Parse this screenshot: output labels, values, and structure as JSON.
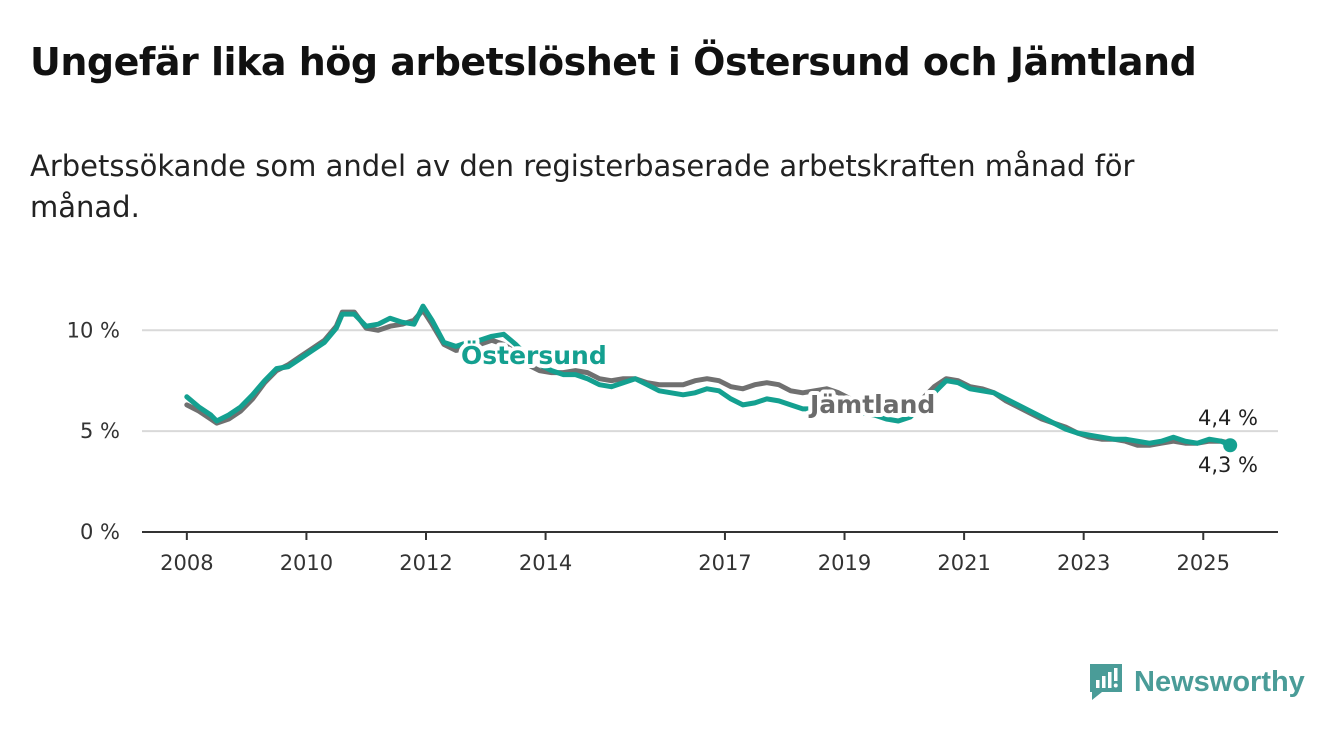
{
  "title": "Ungefär lika hög arbetslöshet i Östersund och Jämtland",
  "subtitle": "Arbetssökande som andel av den registerbaserade arbetskraften månad för månad.",
  "brand": {
    "name": "Newsworthy",
    "icon": "newsworthy-logo-icon",
    "color": "#4a9c98"
  },
  "chart_data": {
    "type": "line",
    "title": "Ungefär lika hög arbetslöshet i Östersund och Jämtland",
    "subtitle": "Arbetssökande som andel av den registerbaserade arbetskraften månad för månad.",
    "xlabel": "",
    "ylabel": "",
    "ylim": [
      0,
      11.5
    ],
    "xlim": [
      2007.25,
      2026.25
    ],
    "grid": true,
    "legend": "inline labels on lines",
    "y_ticks": [
      {
        "value": 0,
        "label": "0 %"
      },
      {
        "value": 5,
        "label": "5 %"
      },
      {
        "value": 10,
        "label": "10 %"
      }
    ],
    "x_ticks": [
      {
        "value": 2008,
        "label": "2008"
      },
      {
        "value": 2010,
        "label": "2010"
      },
      {
        "value": 2012,
        "label": "2012"
      },
      {
        "value": 2014,
        "label": "2014"
      },
      {
        "value": 2017,
        "label": "2017"
      },
      {
        "value": 2019,
        "label": "2019"
      },
      {
        "value": 2021,
        "label": "2021"
      },
      {
        "value": 2023,
        "label": "2023"
      },
      {
        "value": 2025,
        "label": "2025"
      }
    ],
    "series": [
      {
        "name": "Jämtland",
        "color": "#707070",
        "label_value_end": "4,4 %",
        "segments": [
          [
            [
              2008.0,
              6.3
            ],
            [
              2008.2,
              6.0
            ],
            [
              2008.4,
              5.6
            ],
            [
              2008.5,
              5.4
            ],
            [
              2008.7,
              5.6
            ],
            [
              2008.9,
              6.0
            ],
            [
              2009.1,
              6.6
            ],
            [
              2009.3,
              7.4
            ],
            [
              2009.5,
              8.0
            ],
            [
              2009.7,
              8.3
            ],
            [
              2009.9,
              8.7
            ],
            [
              2010.1,
              9.1
            ],
            [
              2010.3,
              9.5
            ],
            [
              2010.5,
              10.2
            ],
            [
              2010.6,
              10.9
            ],
            [
              2010.8,
              10.9
            ],
            [
              2011.0,
              10.1
            ],
            [
              2011.2,
              10.0
            ],
            [
              2011.4,
              10.2
            ],
            [
              2011.6,
              10.3
            ],
            [
              2011.8,
              10.5
            ],
            [
              2011.95,
              11.0
            ],
            [
              2012.1,
              10.3
            ],
            [
              2012.3,
              9.3
            ],
            [
              2012.5,
              9.0
            ],
            [
              2012.7,
              9.1
            ],
            [
              2012.9,
              9.3
            ],
            [
              2013.1,
              9.5
            ],
            [
              2013.3,
              9.3
            ],
            [
              2013.5,
              8.9
            ],
            [
              2013.7,
              8.3
            ],
            [
              2013.9,
              8.0
            ],
            [
              2014.1,
              7.9
            ],
            [
              2014.3,
              7.9
            ],
            [
              2014.5,
              8.0
            ],
            [
              2014.7,
              7.9
            ],
            [
              2014.9,
              7.6
            ],
            [
              2015.1,
              7.5
            ],
            [
              2015.3,
              7.6
            ],
            [
              2015.5,
              7.6
            ],
            [
              2015.7,
              7.4
            ],
            [
              2015.9,
              7.3
            ],
            [
              2016.1,
              7.3
            ],
            [
              2016.3,
              7.3
            ],
            [
              2016.5,
              7.5
            ],
            [
              2016.7,
              7.6
            ],
            [
              2016.9,
              7.5
            ],
            [
              2017.1,
              7.2
            ],
            [
              2017.3,
              7.1
            ],
            [
              2017.5,
              7.3
            ],
            [
              2017.7,
              7.4
            ],
            [
              2017.9,
              7.3
            ],
            [
              2018.1,
              7.0
            ],
            [
              2018.3,
              6.9
            ],
            [
              2018.5,
              7.0
            ],
            [
              2018.7,
              7.1
            ],
            [
              2018.9,
              6.9
            ],
            [
              2019.1,
              6.6
            ],
            [
              2019.3,
              6.3
            ],
            [
              2019.5,
              6.2
            ],
            [
              2019.7,
              6.1
            ],
            [
              2019.9,
              6.0
            ],
            [
              2020.1,
              6.1
            ],
            [
              2020.3,
              6.6
            ],
            [
              2020.5,
              7.2
            ],
            [
              2020.7,
              7.6
            ],
            [
              2020.9,
              7.5
            ],
            [
              2021.1,
              7.2
            ],
            [
              2021.3,
              7.1
            ],
            [
              2021.5,
              6.9
            ],
            [
              2021.7,
              6.5
            ],
            [
              2021.9,
              6.2
            ],
            [
              2022.1,
              5.9
            ],
            [
              2022.3,
              5.6
            ],
            [
              2022.5,
              5.4
            ],
            [
              2022.7,
              5.2
            ],
            [
              2022.9,
              4.9
            ],
            [
              2023.1,
              4.7
            ],
            [
              2023.3,
              4.6
            ],
            [
              2023.5,
              4.6
            ],
            [
              2023.7,
              4.5
            ],
            [
              2023.9,
              4.3
            ],
            [
              2024.1,
              4.3
            ],
            [
              2024.3,
              4.4
            ],
            [
              2024.5,
              4.5
            ],
            [
              2024.7,
              4.4
            ],
            [
              2024.9,
              4.4
            ],
            [
              2025.1,
              4.5
            ],
            [
              2025.3,
              4.5
            ],
            [
              2025.45,
              4.4
            ]
          ]
        ]
      },
      {
        "name": "Östersund",
        "color": "#14a090",
        "label_value_end": "4,3 %",
        "segments": [
          [
            [
              2008.0,
              6.7
            ],
            [
              2008.2,
              6.2
            ],
            [
              2008.4,
              5.8
            ],
            [
              2008.5,
              5.5
            ],
            [
              2008.7,
              5.8
            ],
            [
              2008.9,
              6.2
            ],
            [
              2009.1,
              6.8
            ],
            [
              2009.3,
              7.5
            ],
            [
              2009.5,
              8.1
            ],
            [
              2009.7,
              8.2
            ],
            [
              2009.9,
              8.6
            ],
            [
              2010.1,
              9.0
            ],
            [
              2010.3,
              9.4
            ],
            [
              2010.5,
              10.1
            ],
            [
              2010.6,
              10.8
            ],
            [
              2010.8,
              10.8
            ],
            [
              2011.0,
              10.2
            ],
            [
              2011.2,
              10.3
            ],
            [
              2011.4,
              10.6
            ],
            [
              2011.6,
              10.4
            ],
            [
              2011.8,
              10.3
            ],
            [
              2011.95,
              11.2
            ],
            [
              2012.1,
              10.5
            ],
            [
              2012.3,
              9.4
            ],
            [
              2012.5,
              9.2
            ],
            [
              2012.7,
              9.4
            ],
            [
              2012.9,
              9.5
            ],
            [
              2013.1,
              9.7
            ],
            [
              2013.3,
              9.8
            ],
            [
              2013.5,
              9.3
            ],
            [
              2013.7,
              8.7
            ],
            [
              2013.9,
              8.3
            ],
            [
              2014.1,
              8.0
            ],
            [
              2014.3,
              7.8
            ],
            [
              2014.5,
              7.8
            ],
            [
              2014.7,
              7.6
            ],
            [
              2014.9,
              7.3
            ],
            [
              2015.1,
              7.2
            ],
            [
              2015.3,
              7.4
            ],
            [
              2015.5,
              7.6
            ],
            [
              2015.7,
              7.3
            ],
            [
              2015.9,
              7.0
            ],
            [
              2016.1,
              6.9
            ],
            [
              2016.3,
              6.8
            ],
            [
              2016.5,
              6.9
            ],
            [
              2016.7,
              7.1
            ],
            [
              2016.9,
              7.0
            ],
            [
              2017.1,
              6.6
            ],
            [
              2017.3,
              6.3
            ],
            [
              2017.5,
              6.4
            ],
            [
              2017.7,
              6.6
            ],
            [
              2017.9,
              6.5
            ],
            [
              2018.1,
              6.3
            ],
            [
              2018.3,
              6.1
            ],
            [
              2018.5,
              6.1
            ],
            [
              2018.7,
              6.1
            ],
            [
              2018.9,
              6.2
            ],
            [
              2019.1,
              6.0
            ],
            [
              2019.3,
              5.9
            ],
            [
              2019.5,
              5.8
            ],
            [
              2019.7,
              5.6
            ],
            [
              2019.9,
              5.5
            ],
            [
              2020.1,
              5.7
            ],
            [
              2020.3,
              6.3
            ],
            [
              2020.5,
              6.9
            ],
            [
              2020.7,
              7.5
            ],
            [
              2020.9,
              7.4
            ],
            [
              2021.1,
              7.1
            ],
            [
              2021.3,
              7.0
            ],
            [
              2021.5,
              6.9
            ],
            [
              2021.7,
              6.6
            ],
            [
              2021.9,
              6.3
            ],
            [
              2022.1,
              6.0
            ],
            [
              2022.3,
              5.7
            ],
            [
              2022.5,
              5.4
            ],
            [
              2022.7,
              5.1
            ],
            [
              2022.9,
              4.9
            ],
            [
              2023.1,
              4.8
            ],
            [
              2023.3,
              4.7
            ],
            [
              2023.5,
              4.6
            ],
            [
              2023.7,
              4.6
            ],
            [
              2023.9,
              4.5
            ],
            [
              2024.1,
              4.4
            ],
            [
              2024.3,
              4.5
            ],
            [
              2024.5,
              4.7
            ],
            [
              2024.7,
              4.5
            ],
            [
              2024.9,
              4.4
            ],
            [
              2025.1,
              4.6
            ],
            [
              2025.3,
              4.5
            ],
            [
              2025.45,
              4.3
            ]
          ]
        ]
      }
    ]
  }
}
